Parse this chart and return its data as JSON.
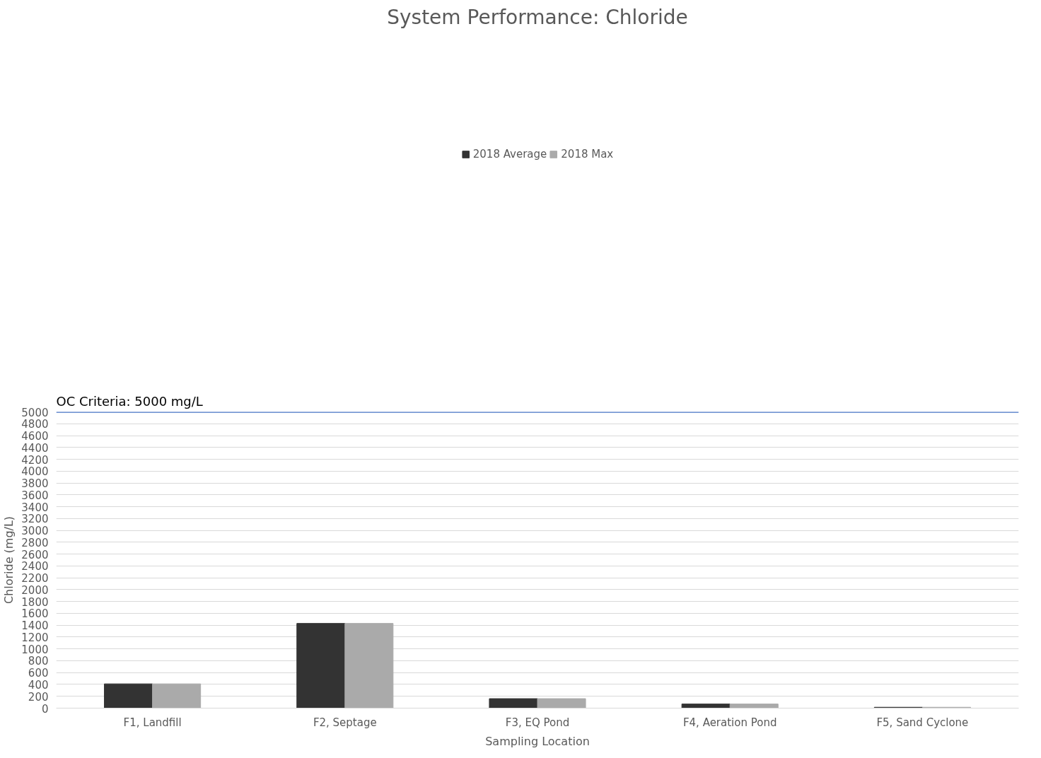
{
  "chart_data": {
    "type": "bar",
    "title": "System Performance: Chloride",
    "xlabel": "Sampling Location",
    "ylabel": "Chloride (mg/L)",
    "categories": [
      "F1, Landfill",
      "F2, Septage",
      "F3, EQ Pond",
      "F4, Aeration Pond",
      "F5, Sand Cyclone"
    ],
    "series": [
      {
        "name": "2018 Average",
        "color": "#333333",
        "values": [
          410,
          1430,
          160,
          70,
          15
        ]
      },
      {
        "name": "2018 Max",
        "color": "#aaaaaa",
        "values": [
          410,
          1430,
          160,
          70,
          15
        ]
      }
    ],
    "ylim": [
      0,
      5000
    ],
    "yticks": [
      0,
      200,
      400,
      600,
      800,
      1000,
      1200,
      1400,
      1600,
      1800,
      2000,
      2200,
      2400,
      2600,
      2800,
      3000,
      3200,
      3400,
      3600,
      3800,
      4000,
      4200,
      4400,
      4600,
      4800,
      5000
    ],
    "ref_lines": [
      {
        "axis": "y",
        "value": 5000,
        "label": "OC Criteria: 5000 mg/L",
        "color": "#4472c4"
      }
    ],
    "grid": "y",
    "legend": "top"
  }
}
